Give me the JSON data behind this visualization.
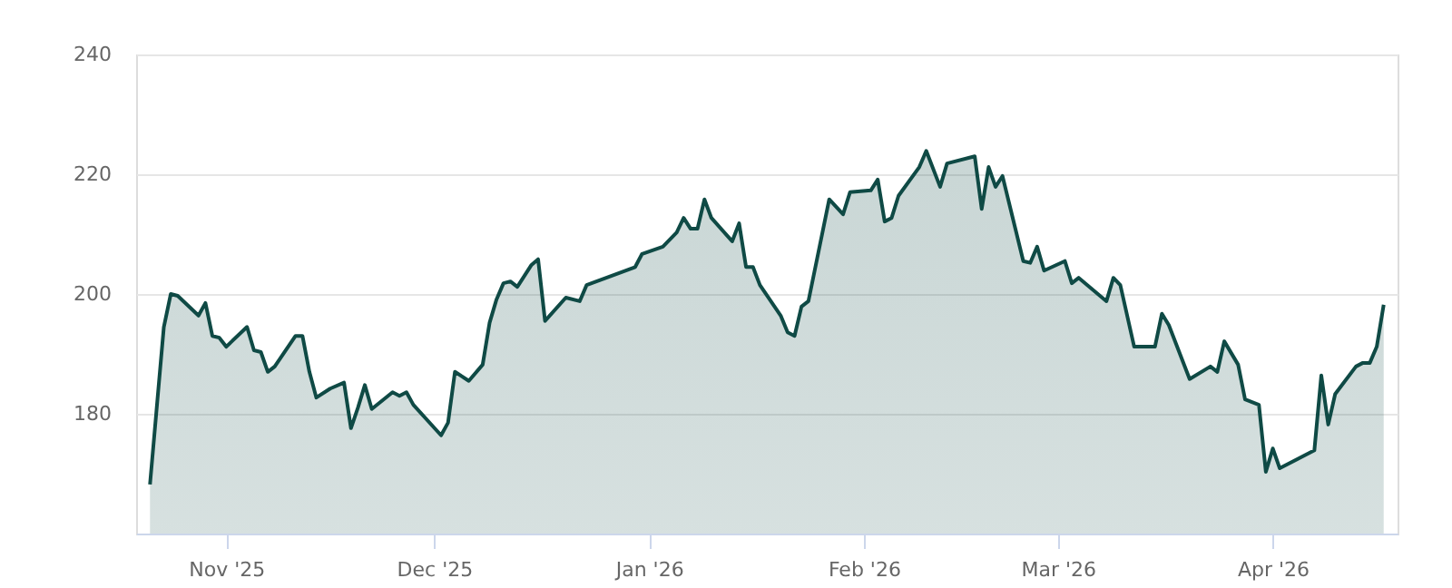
{
  "chart_data": {
    "type": "area",
    "x": [
      "2025-10-21",
      "2025-10-23",
      "2025-10-24",
      "2025-10-25",
      "2025-10-28",
      "2025-10-29",
      "2025-10-30",
      "2025-10-31",
      "2025-11-01",
      "2025-11-04",
      "2025-11-05",
      "2025-11-06",
      "2025-11-07",
      "2025-11-08",
      "2025-11-11",
      "2025-11-12",
      "2025-11-13",
      "2025-11-14",
      "2025-11-16",
      "2025-11-18",
      "2025-11-19",
      "2025-11-20",
      "2025-11-21",
      "2025-11-22",
      "2025-11-25",
      "2025-11-26",
      "2025-11-27",
      "2025-11-28",
      "2025-12-02",
      "2025-12-03",
      "2025-12-04",
      "2025-12-06",
      "2025-12-08",
      "2025-12-09",
      "2025-12-10",
      "2025-12-11",
      "2025-12-12",
      "2025-12-13",
      "2025-12-15",
      "2025-12-16",
      "2025-12-17",
      "2025-12-20",
      "2025-12-22",
      "2025-12-23",
      "2025-12-30",
      "2025-12-31",
      "2026-01-03",
      "2026-01-05",
      "2026-01-06",
      "2026-01-07",
      "2026-01-08",
      "2026-01-09",
      "2026-01-10",
      "2026-01-13",
      "2026-01-14",
      "2026-01-15",
      "2026-01-16",
      "2026-01-17",
      "2026-01-20",
      "2026-01-21",
      "2026-01-22",
      "2026-01-23",
      "2026-01-24",
      "2026-01-27",
      "2026-01-29",
      "2026-01-30",
      "2026-02-02",
      "2026-02-03",
      "2026-02-04",
      "2026-02-05",
      "2026-02-06",
      "2026-02-09",
      "2026-02-10",
      "2026-02-12",
      "2026-02-13",
      "2026-02-17",
      "2026-02-18",
      "2026-02-19",
      "2026-02-20",
      "2026-02-21",
      "2026-02-24",
      "2026-02-25",
      "2026-02-26",
      "2026-02-27",
      "2026-03-02",
      "2026-03-03",
      "2026-03-04",
      "2026-03-08",
      "2026-03-09",
      "2026-03-10",
      "2026-03-12",
      "2026-03-15",
      "2026-03-16",
      "2026-03-17",
      "2026-03-20",
      "2026-03-23",
      "2026-03-24",
      "2026-03-25",
      "2026-03-27",
      "2026-03-28",
      "2026-03-30",
      "2026-03-31",
      "2026-04-01",
      "2026-04-02",
      "2026-04-07",
      "2026-04-08",
      "2026-04-09",
      "2026-04-10",
      "2026-04-13",
      "2026-04-14",
      "2026-04-15",
      "2026-04-16",
      "2026-04-17"
    ],
    "series": [
      {
        "color": "#0f4a45",
        "values": [
          168.2,
          194.5,
          200,
          199.7,
          196.4,
          198.5,
          193,
          192.7,
          191.2,
          194.5,
          190.6,
          190.3,
          187,
          187.9,
          193,
          193,
          187,
          182.7,
          184.2,
          185.2,
          177.6,
          181,
          184.8,
          180.8,
          183.6,
          183,
          183.6,
          181.5,
          176.4,
          178.5,
          187,
          185.5,
          188.2,
          195.2,
          199.1,
          201.8,
          202.1,
          201.2,
          204.8,
          205.8,
          195.5,
          199.4,
          198.8,
          201.5,
          204.5,
          206.7,
          207.9,
          210.3,
          212.7,
          210.9,
          210.9,
          215.8,
          212.7,
          208.8,
          211.8,
          204.5,
          204.5,
          201.5,
          196.4,
          193.6,
          193,
          197.9,
          198.8,
          215.8,
          213.3,
          217,
          217.3,
          219.1,
          212.1,
          212.7,
          216.4,
          221.2,
          223.9,
          217.9,
          221.8,
          223,
          214.2,
          221.2,
          217.9,
          219.7,
          205.5,
          205.2,
          207.9,
          203.9,
          205.5,
          201.8,
          202.7,
          198.8,
          202.7,
          201.5,
          191.2,
          191.2,
          196.7,
          194.8,
          185.8,
          187.9,
          187,
          192.1,
          188.2,
          182.4,
          181.5,
          170.3,
          174.2,
          170.9,
          173.9,
          186.4,
          178.2,
          183.3,
          187.9,
          188.5,
          188.5,
          191.2,
          198.2
        ]
      }
    ],
    "xlim": [
      "2025-10-19",
      "2026-04-19"
    ],
    "xticks": [
      {
        "value": "2025-11-01",
        "label": "Nov '25"
      },
      {
        "value": "2025-12-01",
        "label": "Dec '25"
      },
      {
        "value": "2026-01-01",
        "label": "Jan '26"
      },
      {
        "value": "2026-02-01",
        "label": "Feb '26"
      },
      {
        "value": "2026-03-01",
        "label": "Mar '26"
      },
      {
        "value": "2026-04-01",
        "label": "Apr '26"
      }
    ],
    "ylim": [
      160,
      240
    ],
    "yticks": [
      180,
      200,
      220,
      240
    ],
    "grid": "y",
    "marker": "none",
    "line_style": "solid"
  }
}
